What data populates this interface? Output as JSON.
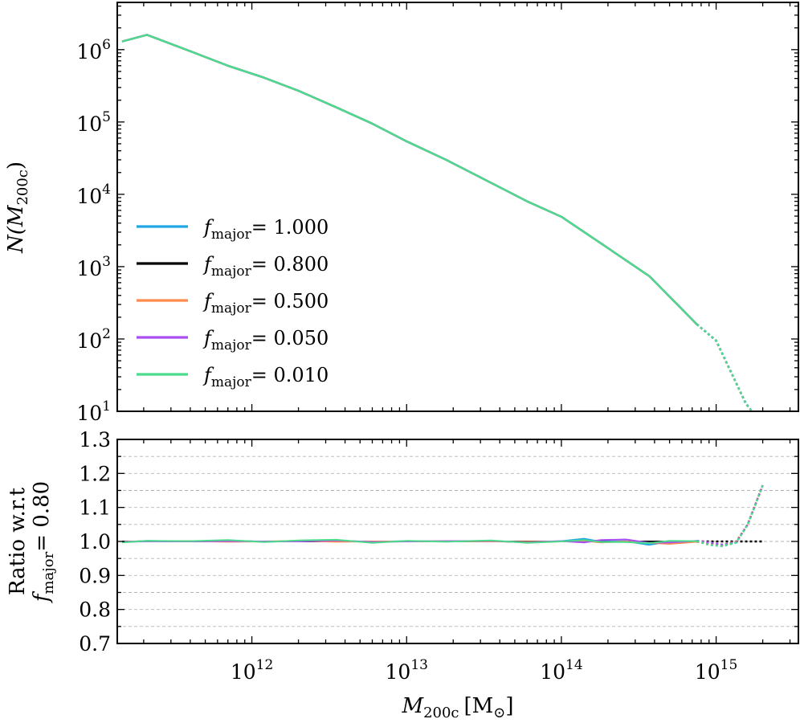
{
  "chart_data": [
    {
      "panel": "top",
      "type": "line",
      "xscale": "log",
      "yscale": "log",
      "xlim": [
        135000000000.0,
        3400000000000000.0
      ],
      "ylim": [
        10,
        4500000.0
      ],
      "xlabel": {
        "main": "M",
        "sub": "200c",
        "unit": "[M",
        "unit_sub": "⊙",
        "unit_close": "]"
      },
      "ylabel": {
        "main": "N(M",
        "sub": "200c",
        "close": ")"
      },
      "xticks": [
        {
          "value": 1000000000000.0,
          "base": "10",
          "exp": "12"
        },
        {
          "value": 10000000000000.0,
          "base": "10",
          "exp": "13"
        },
        {
          "value": 100000000000000.0,
          "base": "10",
          "exp": "14"
        },
        {
          "value": 1000000000000000.0,
          "base": "10",
          "exp": "15"
        }
      ],
      "yticks": [
        {
          "value": 10,
          "base": "10",
          "exp": "1"
        },
        {
          "value": 100,
          "base": "10",
          "exp": "2"
        },
        {
          "value": 1000,
          "base": "10",
          "exp": "3"
        },
        {
          "value": 10000,
          "base": "10",
          "exp": "4"
        },
        {
          "value": 100000,
          "base": "10",
          "exp": "5"
        },
        {
          "value": 1000000,
          "base": "10",
          "exp": "6"
        }
      ],
      "x": [
        145000000000.0,
        210000000000.0,
        400000000000.0,
        700000000000.0,
        1200000000000.0,
        2000000000000.0,
        3500000000000.0,
        6000000000000.0,
        10000000000000.0,
        18000000000000.0,
        35000000000000.0,
        60000000000000.0,
        100000000000000.0,
        180000000000000.0,
        370000000000000.0,
        750000000000000.0
      ],
      "y": [
        1300000.0,
        1600000.0,
        950000.0,
        600000.0,
        410000.0,
        270000.0,
        160000.0,
        95000.0,
        54000.0,
        30000.0,
        14500.0,
        8000.0,
        4900.0,
        2100.0,
        740,
        160
      ],
      "tail_x": [
        750000000000000.0,
        1000000000000000.0,
        1550000000000000.0,
        1700000000000000.0
      ],
      "tail_y": [
        160,
        95,
        13,
        10
      ],
      "legend": [
        {
          "label_main": "f",
          "label_sub": "major",
          "label_value": "= 1.000",
          "color": "#1ea7e4"
        },
        {
          "label_main": "f",
          "label_sub": "major",
          "label_value": "= 0.800",
          "color": "#000000"
        },
        {
          "label_main": "f",
          "label_sub": "major",
          "label_value": "= 0.500",
          "color": "#ff8a4c"
        },
        {
          "label_main": "f",
          "label_sub": "major",
          "label_value": "= 0.050",
          "color": "#a94df2"
        },
        {
          "label_main": "f",
          "label_sub": "major",
          "label_value": "= 0.010",
          "color": "#4bdb8a"
        }
      ]
    },
    {
      "panel": "bottom",
      "type": "line",
      "xscale": "log",
      "yscale": "linear",
      "ylim": [
        0.7,
        1.3
      ],
      "grid": "horizontal-dashed",
      "grid_values": [
        0.75,
        0.8,
        0.85,
        0.9,
        0.95,
        1.0,
        1.05,
        1.1,
        1.15,
        1.2,
        1.25
      ],
      "ylabel_line1": "Ratio w.r.t",
      "ylabel_line2": {
        "main": "f",
        "sub": "major",
        "value": "= 0.80"
      },
      "yticks": [
        "0.7",
        "0.8",
        "0.9",
        "1.0",
        "1.1",
        "1.2",
        "1.3"
      ],
      "x": [
        145000000000.0,
        210000000000.0,
        400000000000.0,
        700000000000.0,
        1200000000000.0,
        2000000000000.0,
        3500000000000.0,
        6000000000000.0,
        10000000000000.0,
        18000000000000.0,
        35000000000000.0,
        60000000000000.0,
        100000000000000.0,
        140000000000000.0,
        180000000000000.0,
        260000000000000.0,
        370000000000000.0,
        500000000000000.0,
        750000000000000.0
      ],
      "tail_x": [
        750000000000000.0,
        900000000000000.0,
        1100000000000000.0,
        1350000000000000.0,
        1600000000000000.0,
        2000000000000000.0
      ],
      "series": [
        {
          "name": "f_major = 1.000",
          "color": "#1ea7e4",
          "values": [
            0.998,
            1.002,
            1.0,
            1.003,
            0.999,
            1.001,
            1.002,
            0.999,
            1.001,
            1.0,
            1.001,
            0.998,
            1.001,
            1.008,
            0.999,
            1.001,
            0.99,
            1.0,
            0.999
          ],
          "tail": [
            0.999,
            0.995,
            0.99,
            0.997,
            1.05,
            1.165
          ]
        },
        {
          "name": "f_major = 0.800",
          "color": "#000000",
          "values": [
            1.0,
            1.0,
            1.0,
            1.0,
            1.0,
            1.0,
            1.0,
            1.0,
            1.0,
            1.0,
            1.0,
            1.0,
            1.0,
            1.0,
            1.0,
            1.0,
            1.0,
            1.0,
            1.0
          ],
          "tail": [
            1.0,
            1.0,
            1.0,
            1.0,
            1.0,
            1.0
          ]
        },
        {
          "name": "f_major = 0.500",
          "color": "#ff8a4c",
          "values": [
            0.999,
            1.001,
            1.001,
            0.999,
            1.0,
            1.002,
            0.999,
            1.0,
            1.0,
            1.001,
            1.0,
            0.999,
            1.0,
            1.002,
            0.997,
            1.0,
            0.996,
            0.993,
            0.999
          ],
          "tail": [
            0.999,
            0.993,
            0.99,
            1.0,
            1.05,
            1.165
          ]
        },
        {
          "name": "f_major = 0.050",
          "color": "#a94df2",
          "values": [
            0.999,
            1.0,
            1.0,
            1.001,
            1.0,
            1.0,
            1.003,
            0.998,
            1.0,
            1.001,
            1.002,
            0.997,
            1.001,
            0.997,
            1.004,
            1.006,
            0.996,
            0.997,
            1.002
          ],
          "tail": [
            1.002,
            0.997,
            0.99,
            0.998,
            1.05,
            1.165
          ]
        },
        {
          "name": "f_major = 0.010",
          "color": "#4bdb8a",
          "values": [
            0.997,
            1.002,
            1.001,
            1.004,
            0.998,
            1.003,
            1.005,
            0.996,
            1.002,
            0.999,
            1.003,
            0.996,
            1.0,
            1.004,
            0.998,
            0.998,
            0.995,
            1.002,
            1.001
          ],
          "tail": [
            1.001,
            0.99,
            0.986,
            0.997,
            1.05,
            1.165
          ]
        }
      ]
    }
  ]
}
